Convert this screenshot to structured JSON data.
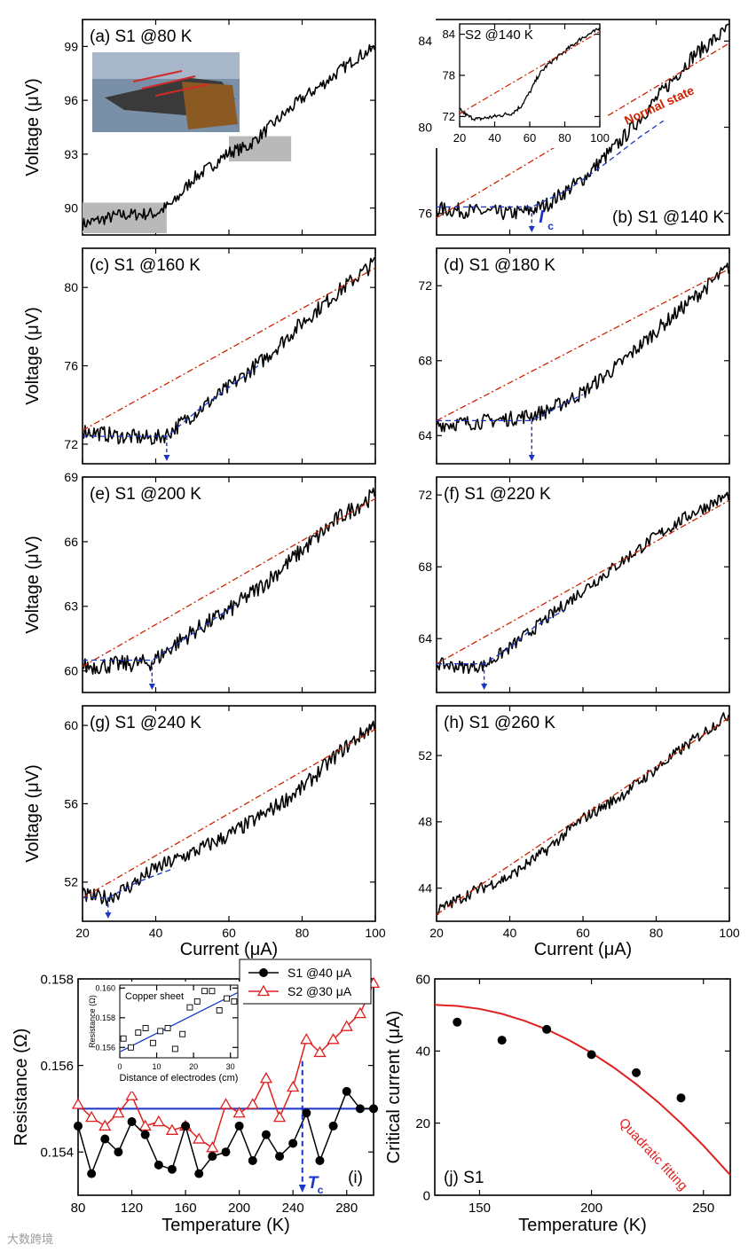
{
  "watermark": "大数跨境",
  "chart_data": [
    {
      "id": "a",
      "type": "line",
      "label": "(a) S1 @80 K",
      "xlabel": "",
      "ylabel": "Voltage (μV)",
      "xlim": [
        20,
        100
      ],
      "ylim": [
        88.5,
        100.5
      ],
      "yticks": [
        90,
        93,
        96,
        99
      ],
      "xticks": [
        20,
        40,
        60,
        80,
        100
      ],
      "series": [
        {
          "name": "S1 @80 K",
          "x": [
            20,
            30,
            40,
            45,
            50,
            55,
            60,
            65,
            70,
            75,
            80,
            85,
            90,
            95,
            100
          ],
          "y": [
            89.1,
            89.6,
            89.7,
            90.3,
            91.6,
            92.3,
            93.1,
            93.4,
            94.3,
            95.2,
            96.1,
            96.8,
            97.6,
            98.4,
            98.9
          ],
          "noise": 0.35
        }
      ],
      "annotations": {
        "photo": "instrument photo",
        "gray_boxes": 2
      }
    },
    {
      "id": "b",
      "type": "line",
      "label": "(b) S1 @140 K",
      "xlabel": "",
      "ylabel": "",
      "xlim": [
        20,
        100
      ],
      "ylim": [
        75,
        85
      ],
      "yticks": [
        76,
        80,
        84
      ],
      "xticks": [
        20,
        40,
        60,
        80,
        100
      ],
      "series": [
        {
          "name": "S1 @140 K",
          "x": [
            20,
            30,
            40,
            45,
            50,
            60,
            70,
            80,
            90,
            100
          ],
          "y": [
            76.2,
            76.1,
            76.0,
            76.1,
            76.4,
            77.6,
            79.3,
            81.3,
            83.3,
            84.6
          ],
          "noise": 0.35
        },
        {
          "name": "Normal state",
          "style": "dash-dot",
          "x": [
            20,
            100
          ],
          "y": [
            75.8,
            83.9
          ]
        },
        {
          "name": "fit",
          "style": "dashed",
          "x": [
            20,
            46,
            56,
            66,
            76,
            82
          ],
          "y": [
            76.3,
            76.3,
            77.1,
            78.3,
            79.6,
            80.3
          ]
        }
      ],
      "normal_state_label": "Normal state",
      "ic_x": 46,
      "ic_label": "I",
      "ic_sub": "c",
      "inset": {
        "label": "S2 @140 K",
        "xlim": [
          20,
          100
        ],
        "ylim": [
          70.5,
          85.5
        ],
        "yticks": [
          72,
          78,
          84
        ],
        "xticks": [
          20,
          40,
          60,
          80,
          100
        ],
        "series": [
          {
            "name": "S2 @140 K",
            "x": [
              20,
              25,
              30,
              40,
              50,
              55,
              60,
              65,
              70,
              80,
              90,
              100
            ],
            "y": [
              73.0,
              72.0,
              71.6,
              72.0,
              72.5,
              73.5,
              75.5,
              78.0,
              79.5,
              81.5,
              83.5,
              84.8
            ],
            "noise": 0.3
          },
          {
            "name": "line",
            "style": "dash-dot",
            "x": [
              20,
              100
            ],
            "y": [
              72.4,
              84.4
            ]
          }
        ]
      }
    },
    {
      "id": "c",
      "type": "line",
      "label": "(c) S1 @160 K",
      "xlabel": "",
      "ylabel": "Voltage (μV)",
      "xlim": [
        20,
        100
      ],
      "ylim": [
        71,
        82
      ],
      "yticks": [
        72,
        76,
        80
      ],
      "xticks": [
        20,
        40,
        60,
        80,
        100
      ],
      "series": [
        {
          "name": "S1 @160 K",
          "x": [
            20,
            30,
            40,
            43,
            50,
            60,
            70,
            80,
            90,
            100
          ],
          "y": [
            72.7,
            72.4,
            72.3,
            72.5,
            73.5,
            74.9,
            76.4,
            78.2,
            79.8,
            81.3
          ],
          "noise": 0.4
        },
        {
          "name": "Normal state",
          "style": "dash-dot",
          "x": [
            20,
            100
          ],
          "y": [
            72.7,
            81.0
          ]
        },
        {
          "name": "fit",
          "style": "dashed",
          "x": [
            20,
            43,
            52,
            60,
            68
          ],
          "y": [
            72.4,
            72.4,
            73.8,
            74.9,
            76.0
          ]
        }
      ],
      "ic_x": 43
    },
    {
      "id": "d",
      "type": "line",
      "label": "(d) S1 @180 K",
      "xlabel": "",
      "ylabel": "",
      "xlim": [
        20,
        100
      ],
      "ylim": [
        62.5,
        74
      ],
      "yticks": [
        64,
        68,
        72
      ],
      "xticks": [
        20,
        40,
        60,
        80,
        100
      ],
      "series": [
        {
          "name": "S1 @180 K",
          "x": [
            20,
            30,
            40,
            46,
            50,
            60,
            70,
            80,
            90,
            100
          ],
          "y": [
            64.6,
            64.7,
            64.9,
            65.1,
            65.3,
            66.3,
            67.8,
            69.6,
            71.3,
            73.0
          ],
          "noise": 0.4
        },
        {
          "name": "Normal state",
          "style": "dash-dot",
          "x": [
            20,
            100
          ],
          "y": [
            64.8,
            72.9
          ]
        },
        {
          "name": "fit",
          "style": "dashed",
          "x": [
            20,
            46,
            53,
            60
          ],
          "y": [
            64.8,
            64.8,
            65.5,
            66.2
          ]
        }
      ],
      "ic_x": 46
    },
    {
      "id": "e",
      "type": "line",
      "label": "(e) S1 @200 K",
      "xlabel": "",
      "ylabel": "Voltage (μV)",
      "xlim": [
        20,
        100
      ],
      "ylim": [
        59,
        69
      ],
      "yticks": [
        60,
        63,
        66,
        69
      ],
      "xticks": [
        20,
        40,
        60,
        80,
        100
      ],
      "series": [
        {
          "name": "S1 @200 K",
          "x": [
            20,
            30,
            39,
            45,
            50,
            60,
            70,
            80,
            90,
            100
          ],
          "y": [
            60.2,
            60.3,
            60.4,
            61.2,
            61.8,
            62.8,
            64.1,
            65.6,
            67.1,
            68.2
          ],
          "noise": 0.4
        },
        {
          "name": "Normal state",
          "style": "dash-dot",
          "x": [
            20,
            100
          ],
          "y": [
            60.2,
            68.0
          ]
        },
        {
          "name": "fit",
          "style": "dashed",
          "x": [
            20,
            39,
            48,
            55,
            62
          ],
          "y": [
            60.5,
            60.5,
            61.5,
            62.3,
            63.1
          ]
        }
      ],
      "ic_x": 39
    },
    {
      "id": "f",
      "type": "line",
      "label": "(f) S1 @220 K",
      "xlabel": "",
      "ylabel": "",
      "xlim": [
        20,
        100
      ],
      "ylim": [
        61,
        73
      ],
      "yticks": [
        64,
        68,
        72
      ],
      "xticks": [
        20,
        40,
        60,
        80,
        100
      ],
      "series": [
        {
          "name": "S1 @220 K",
          "x": [
            20,
            28,
            33,
            40,
            50,
            60,
            70,
            80,
            90,
            100
          ],
          "y": [
            62.6,
            62.4,
            62.5,
            63.5,
            65.1,
            66.7,
            68.2,
            69.7,
            71.0,
            72.0
          ],
          "noise": 0.35
        },
        {
          "name": "Normal state",
          "style": "dash-dot",
          "x": [
            20,
            100
          ],
          "y": [
            62.6,
            71.7
          ]
        },
        {
          "name": "fit",
          "style": "dashed",
          "x": [
            20,
            33,
            40,
            47,
            55
          ],
          "y": [
            62.6,
            62.6,
            63.5,
            64.7,
            65.6
          ]
        }
      ],
      "ic_x": 33
    },
    {
      "id": "g",
      "type": "line",
      "label": "(g) S1 @240 K",
      "xlabel": "Current (μA)",
      "ylabel": "Voltage (μV)",
      "xlim": [
        20,
        100
      ],
      "ylim": [
        50,
        61
      ],
      "yticks": [
        52,
        56,
        60
      ],
      "xticks": [
        20,
        40,
        60,
        80,
        100
      ],
      "series": [
        {
          "name": "S1 @240 K",
          "x": [
            20,
            27,
            33,
            40,
            50,
            60,
            70,
            80,
            90,
            100
          ],
          "y": [
            51.3,
            51.2,
            51.8,
            52.7,
            53.5,
            54.4,
            55.5,
            56.8,
            58.6,
            60.1
          ],
          "noise": 0.4
        },
        {
          "name": "Normal state",
          "style": "dash-dot",
          "x": [
            20,
            100
          ],
          "y": [
            51.2,
            59.8
          ]
        },
        {
          "name": "fit",
          "style": "dashed",
          "x": [
            20,
            27,
            35,
            45
          ],
          "y": [
            51.2,
            51.2,
            52.0,
            52.7
          ]
        }
      ],
      "ic_x": 27
    },
    {
      "id": "h",
      "type": "line",
      "label": "(h) S1 @260 K",
      "xlabel": "Current (μA)",
      "ylabel": "",
      "xlim": [
        20,
        100
      ],
      "ylim": [
        42,
        55
      ],
      "yticks": [
        44,
        48,
        52
      ],
      "xticks": [
        20,
        40,
        60,
        80,
        100
      ],
      "series": [
        {
          "name": "S1 @260 K",
          "x": [
            20,
            30,
            40,
            50,
            60,
            70,
            80,
            90,
            100
          ],
          "y": [
            42.6,
            43.8,
            44.7,
            46.3,
            48.2,
            49.5,
            51.2,
            52.9,
            54.5
          ],
          "noise": 0.35
        },
        {
          "name": "Normal state",
          "style": "dash-dot",
          "x": [
            20,
            100
          ],
          "y": [
            42.4,
            54.3
          ]
        }
      ]
    },
    {
      "id": "i",
      "type": "line",
      "label": "(i)",
      "xlabel": "Temperature (K)",
      "ylabel": "Resistance (Ω)",
      "xlim": [
        80,
        300
      ],
      "ylim": [
        0.153,
        0.158
      ],
      "yticks": [
        0.154,
        0.156,
        0.158
      ],
      "xticks": [
        80,
        120,
        160,
        200,
        240,
        280
      ],
      "series": [
        {
          "name": "S1 @40 μA",
          "marker": "filled-circle",
          "x": [
            80,
            90,
            100,
            110,
            120,
            130,
            140,
            150,
            160,
            170,
            180,
            190,
            200,
            210,
            220,
            230,
            240,
            250,
            260,
            270,
            280,
            290,
            300
          ],
          "y": [
            0.1546,
            0.1535,
            0.1543,
            0.154,
            0.1547,
            0.1544,
            0.1537,
            0.1536,
            0.1546,
            0.1535,
            0.1539,
            0.154,
            0.1546,
            0.1538,
            0.1544,
            0.1539,
            0.1542,
            0.1549,
            0.1538,
            0.1546,
            0.1554,
            0.155,
            0.155
          ]
        },
        {
          "name": "S2 @30 μA",
          "marker": "open-triangle",
          "x": [
            80,
            90,
            100,
            110,
            120,
            130,
            140,
            150,
            160,
            170,
            180,
            190,
            200,
            210,
            220,
            230,
            240,
            250,
            260,
            270,
            280,
            290,
            300
          ],
          "y": [
            0.1551,
            0.1548,
            0.1546,
            0.1549,
            0.1553,
            0.1546,
            0.1547,
            0.1545,
            0.1546,
            0.1543,
            0.1541,
            0.1551,
            0.1549,
            0.1551,
            0.1557,
            0.1548,
            0.1555,
            0.1566,
            0.1563,
            0.1566,
            0.1569,
            0.1572,
            0.1579
          ]
        },
        {
          "name": "avg",
          "style": "solid-blue",
          "x": [
            80,
            300
          ],
          "y": [
            0.155,
            0.155
          ]
        }
      ],
      "legend": [
        "S1 @40 μA",
        "S2 @30 μA"
      ],
      "tc_x": 247,
      "tc_label": "T",
      "tc_sub": "c",
      "inset": {
        "label": "Copper sheet",
        "xlabel": "Distance of electrodes (cm)",
        "ylabel": "Resistance (Ω)",
        "xlim": [
          0,
          32
        ],
        "ylim": [
          0.1553,
          0.1602
        ],
        "yticks": [
          0.156,
          0.158,
          0.16
        ],
        "ytick_labels": [
          "0.156",
          "0.158",
          "0.160"
        ],
        "xticks": [
          0,
          10,
          20,
          30
        ],
        "points_x": [
          1,
          3,
          5,
          7,
          9,
          11,
          13,
          15,
          17,
          19,
          21,
          23,
          25,
          27,
          29,
          31
        ],
        "points_y": [
          0.1566,
          0.156,
          0.157,
          0.1573,
          0.1563,
          0.1571,
          0.1573,
          0.1559,
          0.1569,
          0.1587,
          0.1591,
          0.1598,
          0.1598,
          0.1585,
          0.1593,
          0.1591
        ],
        "fit_x": [
          0,
          32
        ],
        "fit_y": [
          0.1557,
          0.1597
        ]
      }
    },
    {
      "id": "j",
      "type": "scatter",
      "label": "(j) S1",
      "xlabel": "Temperature (K)",
      "ylabel": "Critical current (μA)",
      "xlim": [
        130,
        262
      ],
      "ylim": [
        0,
        60
      ],
      "yticks": [
        0,
        20,
        40,
        60
      ],
      "xticks": [
        150,
        200,
        250
      ],
      "series": [
        {
          "name": "S1",
          "marker": "filled-circle",
          "x": [
            140,
            160,
            180,
            200,
            220,
            240
          ],
          "y": [
            48,
            43,
            46,
            39,
            34,
            27
          ]
        },
        {
          "name": "Quadratic fitting",
          "style": "solid-red",
          "x": [
            130,
            140,
            150,
            160,
            170,
            180,
            190,
            200,
            210,
            220,
            230,
            240,
            250,
            262
          ],
          "y": [
            52.8,
            52.5,
            51.7,
            50.3,
            48.4,
            46.0,
            43.0,
            39.5,
            35.4,
            30.8,
            25.7,
            20.0,
            13.8,
            5.6
          ]
        }
      ],
      "fit_label": "Quadratic fitting"
    }
  ],
  "colors": {
    "data": "#000000",
    "normal": "#cc2200",
    "fit": "#1a35c8",
    "s2": "#e02020",
    "hline": "#1a35c8",
    "photo_bg": "#7a8fa8"
  }
}
